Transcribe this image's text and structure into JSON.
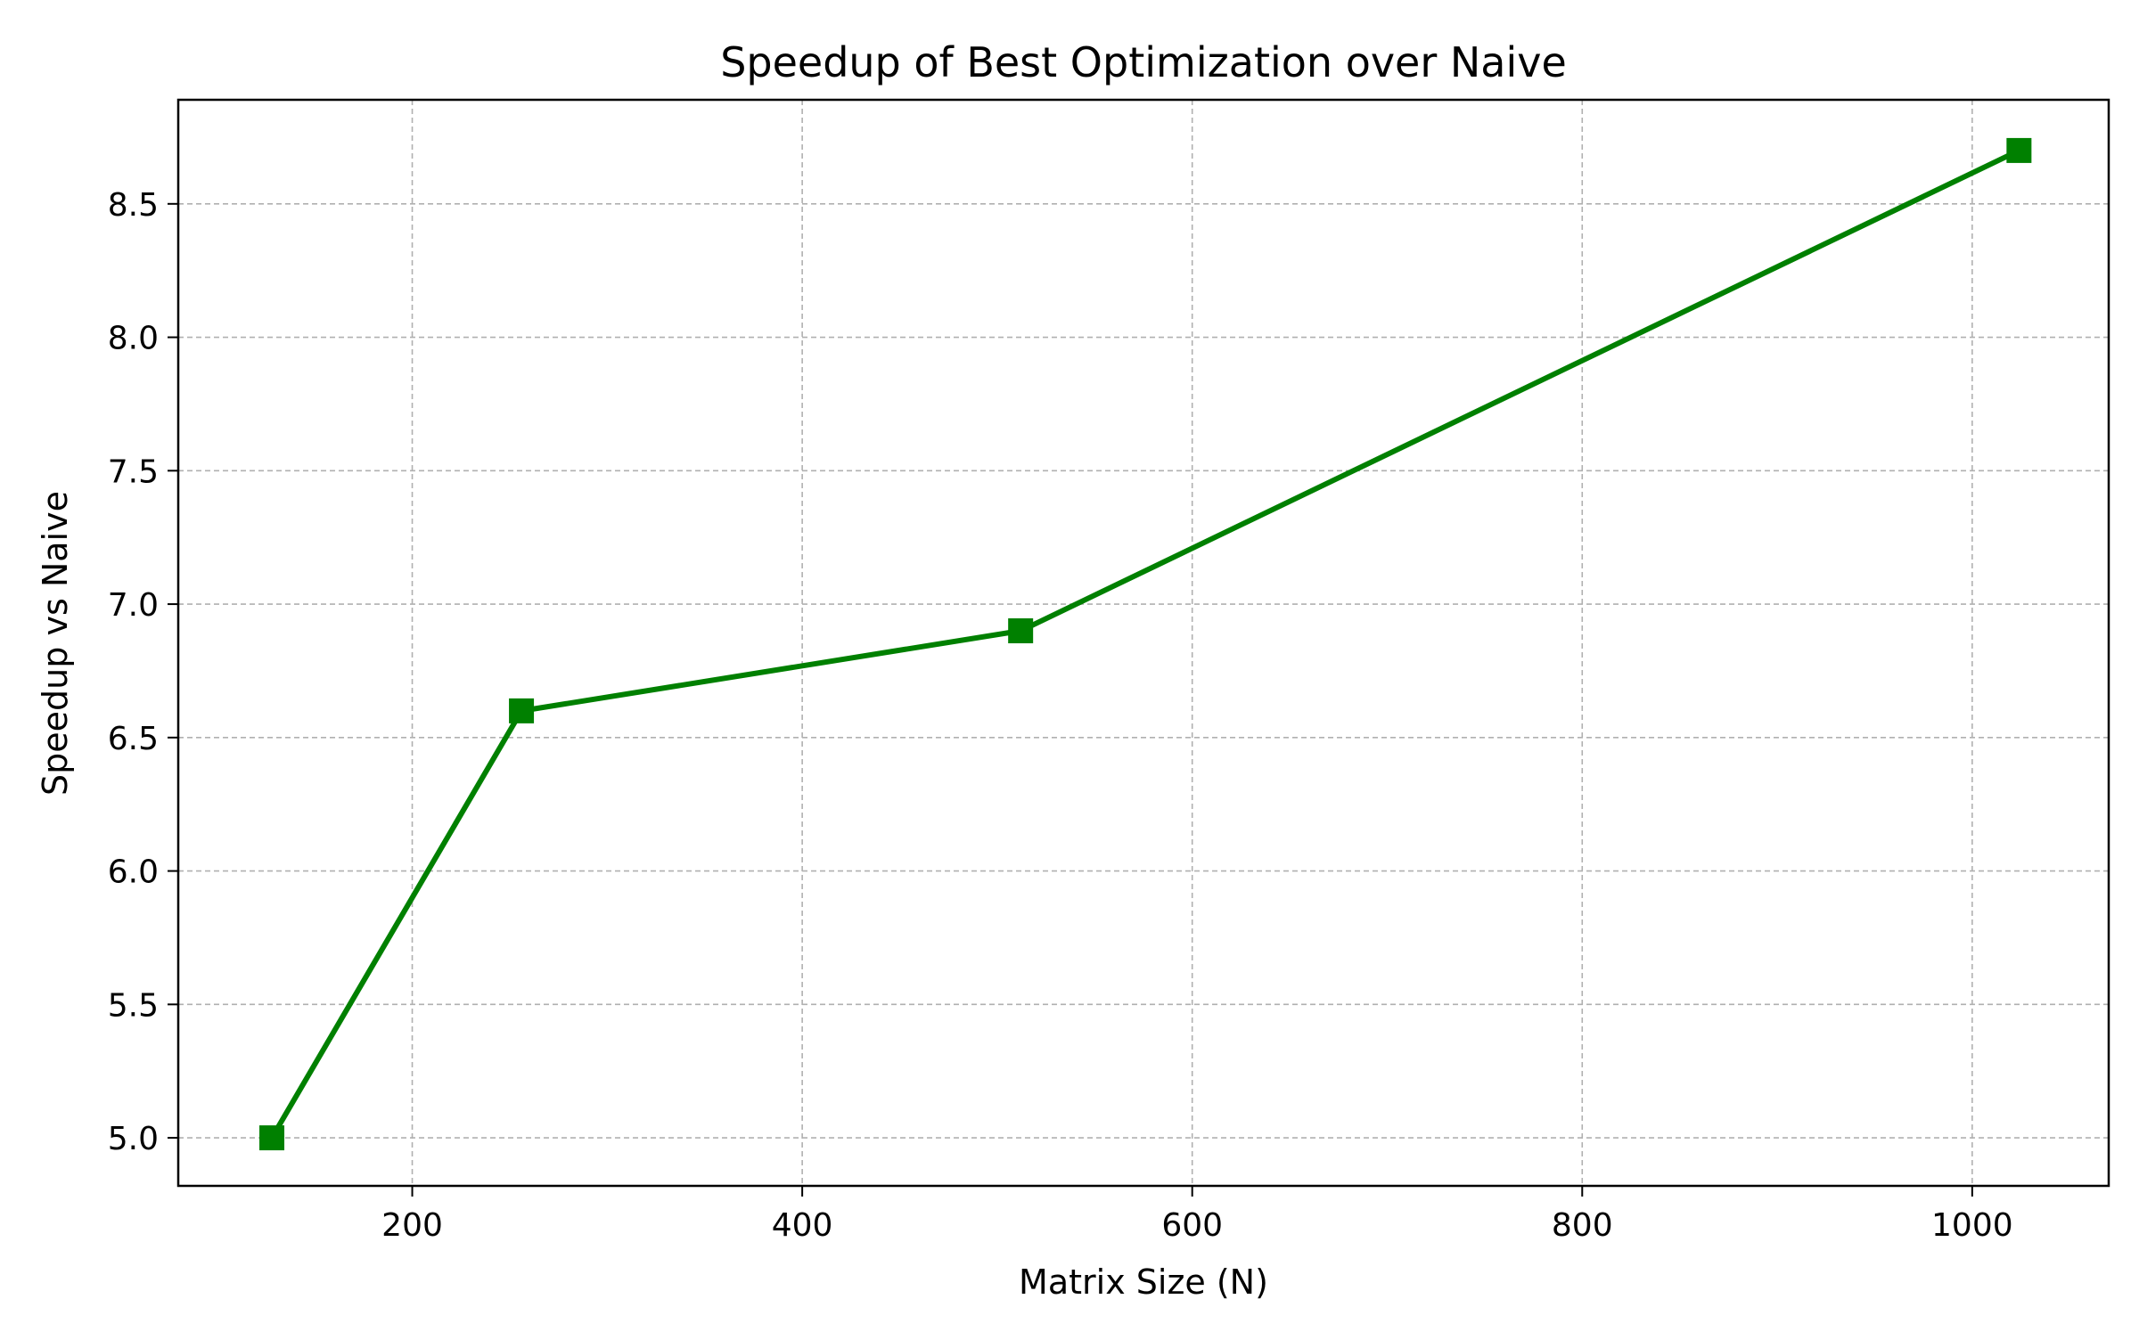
{
  "chart_data": {
    "type": "line",
    "title": "Speedup of Best Optimization over Naive",
    "xlabel": "Matrix Size (N)",
    "ylabel": "Speedup vs Naive",
    "xlim": [
      80,
      1070
    ],
    "ylim": [
      4.82,
      8.89
    ],
    "xticks": [
      200,
      400,
      600,
      800,
      1000
    ],
    "yticks": [
      5.0,
      5.5,
      6.0,
      6.5,
      7.0,
      7.5,
      8.0,
      8.5
    ],
    "grid": true,
    "series": [
      {
        "x": [
          128,
          256,
          512,
          1024
        ],
        "y": [
          5.0,
          6.6,
          6.9,
          8.7
        ],
        "color": "#008000",
        "marker": "square",
        "line_style": "solid"
      }
    ]
  },
  "colors": {
    "grid": "#b0b0b0",
    "axes": "#000000",
    "background": "#ffffff"
  }
}
